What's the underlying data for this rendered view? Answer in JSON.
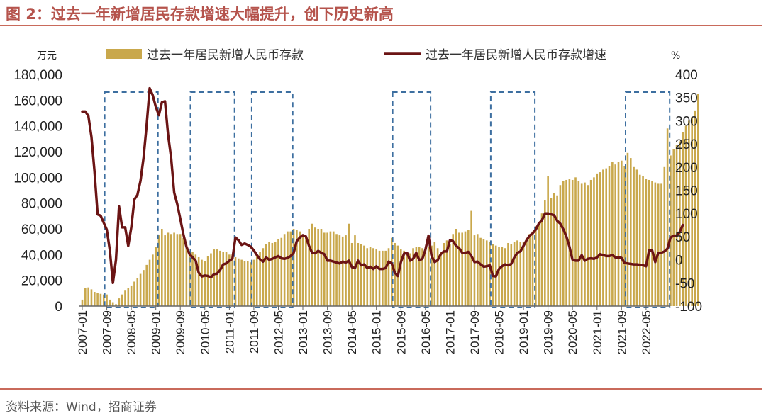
{
  "figure": {
    "title": "图 2：过去一年新增居民存款增速大幅提升，创下历史新高",
    "source": "资料来源：Wind，招商证券"
  },
  "colors": {
    "title": "#b5534c",
    "bar": "#c9a84c",
    "line": "#6b1414",
    "highlight_box": "#3d6fa0",
    "rule": "#c96a5b"
  },
  "chart_data": {
    "type": "bar",
    "title": "过去一年新增居民存款增速大幅提升，创下历史新高",
    "left_axis": {
      "unit": "万元",
      "ylim": [
        0,
        180000
      ],
      "ticks": [
        "180,000",
        "160,000",
        "140,000",
        "120,000",
        "100,000",
        "80,000",
        "60,000",
        "40,000",
        "20,000",
        "0"
      ]
    },
    "right_axis": {
      "unit": "%",
      "ylim": [
        -100,
        400
      ],
      "ticks": [
        "400",
        "350",
        "300",
        "250",
        "200",
        "150",
        "100",
        "50",
        "0",
        "-50",
        "-100"
      ]
    },
    "x_tick_labels": [
      "2007-01",
      "2007-09",
      "2008-05",
      "2009-01",
      "2009-09",
      "2010-05",
      "2011-01",
      "2011-09",
      "2012-05",
      "2013-01",
      "2013-09",
      "2014-05",
      "2015-01",
      "2015-09",
      "2016-05",
      "2017-01",
      "2017-09",
      "2018-05",
      "2019-01",
      "2019-09",
      "2020-05",
      "2021-01",
      "2021-09",
      "2022-05"
    ],
    "x_start": "2007-01",
    "x_end": "2022-12",
    "series": [
      {
        "name": "过去一年居民新增人民币存款",
        "type": "bar",
        "axis": "left",
        "values": [
          5000,
          14000,
          14500,
          13000,
          11000,
          10000,
          9500,
          9000,
          9000,
          5000,
          3000,
          1500,
          6000,
          9000,
          12000,
          14000,
          16000,
          19000,
          22000,
          25000,
          28000,
          32000,
          36000,
          40000,
          46000,
          55000,
          60000,
          55000,
          57000,
          56000,
          57000,
          56000,
          56000,
          53000,
          48000,
          43000,
          42000,
          40000,
          38000,
          36000,
          35000,
          39000,
          41000,
          44000,
          44000,
          43000,
          42000,
          42000,
          40000,
          40000,
          38000,
          37000,
          36000,
          35000,
          35000,
          34000,
          36000,
          40000,
          42000,
          45000,
          48000,
          50000,
          49000,
          50000,
          52000,
          53000,
          56000,
          58000,
          58000,
          60000,
          59000,
          58000,
          55000,
          53000,
          60000,
          64000,
          61000,
          60000,
          60000,
          57000,
          57000,
          58000,
          58000,
          56000,
          55000,
          54000,
          55000,
          64000,
          49000,
          55000,
          49000,
          48000,
          47000,
          45000,
          46000,
          45000,
          44000,
          43000,
          43000,
          43000,
          45000,
          53000,
          49000,
          47000,
          44000,
          43000,
          42000,
          41000,
          45000,
          46000,
          46000,
          45000,
          45000,
          46000,
          47000,
          50000,
          45000,
          42000,
          49000,
          51000,
          48000,
          56000,
          60000,
          57000,
          57000,
          58000,
          59000,
          74000,
          55000,
          56000,
          53000,
          52000,
          51000,
          50000,
          48000,
          47000,
          46000,
          46000,
          45000,
          49000,
          48000,
          50000,
          51000,
          50000,
          50000,
          53000,
          56000,
          58000,
          62000,
          65000,
          72000,
          82000,
          101000,
          84000,
          88000,
          86000,
          94000,
          97000,
          98000,
          99000,
          98000,
          100000,
          97000,
          95000,
          96000,
          94000,
          98000,
          100000,
          103000,
          104000,
          106000,
          107000,
          109000,
          112000,
          110000,
          112000,
          113000,
          109000,
          119000,
          115000,
          108000,
          106000,
          102000,
          101000,
          99000,
          98000,
          97000,
          96000,
          95000,
          95000,
          108000,
          138000,
          117000,
          122000,
          125000,
          128000,
          135000,
          140000,
          144000,
          147000,
          152000,
          165000
        ]
      },
      {
        "name": "过去一年居民新增人民币存款增速",
        "type": "line",
        "axis": "right",
        "values": [
          320,
          320,
          310,
          265,
          190,
          98,
          95,
          80,
          65,
          20,
          -50,
          0,
          115,
          70,
          70,
          30,
          70,
          130,
          140,
          170,
          220,
          290,
          370,
          355,
          330,
          312,
          340,
          342,
          270,
          220,
          145,
          120,
          88,
          55,
          28,
          12,
          5,
          -2,
          -28,
          -36,
          -34,
          -35,
          -38,
          -31,
          -30,
          -22,
          -10,
          -8,
          -2,
          2,
          48,
          42,
          32,
          35,
          32,
          28,
          20,
          10,
          1,
          -4,
          5,
          0,
          2,
          5,
          8,
          3,
          2,
          4,
          8,
          15,
          40,
          48,
          53,
          50,
          30,
          15,
          14,
          19,
          15,
          12,
          -2,
          -2,
          -4,
          -6,
          -8,
          -4,
          -6,
          -2,
          -16,
          -18,
          -2,
          -12,
          -10,
          -18,
          -15,
          -20,
          -14,
          -20,
          -20,
          -18,
          -4,
          -8,
          -28,
          -35,
          -5,
          13,
          15,
          -2,
          2,
          15,
          -1,
          2,
          22,
          52,
          8,
          -5,
          -1,
          12,
          18,
          18,
          42,
          40,
          30,
          25,
          15,
          15,
          17,
          8,
          -5,
          -4,
          -10,
          -15,
          -14,
          -12,
          -35,
          -36,
          -20,
          -14,
          -10,
          -12,
          -9,
          5,
          15,
          18,
          30,
          42,
          52,
          57,
          65,
          78,
          85,
          100,
          100,
          98,
          96,
          84,
          78,
          66,
          50,
          28,
          0,
          -2,
          -2,
          10,
          -2,
          2,
          3,
          2,
          5,
          12,
          10,
          8,
          8,
          10,
          5,
          5,
          4,
          -7,
          -8,
          -9,
          -10,
          -10,
          -11,
          -12,
          -14,
          20,
          20,
          -5,
          15,
          15,
          18,
          24,
          48,
          52,
          52,
          60,
          75
        ]
      }
    ],
    "highlight_windows": [
      [
        "2007-09",
        "2009-01"
      ],
      [
        "2010-01",
        "2011-02"
      ],
      [
        "2011-09",
        "2012-09"
      ],
      [
        "2015-07",
        "2016-06"
      ],
      [
        "2018-03",
        "2019-04"
      ],
      [
        "2021-11",
        "2022-12"
      ]
    ]
  }
}
